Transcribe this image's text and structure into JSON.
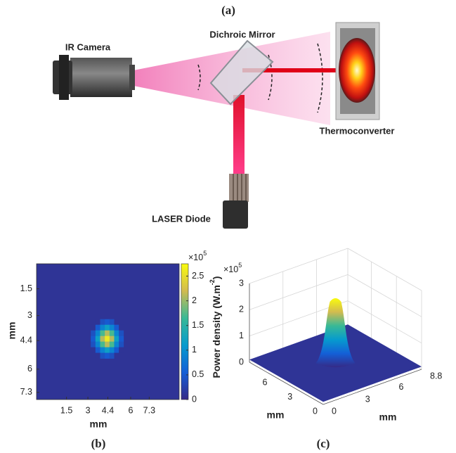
{
  "panel_a": {
    "label": "(a)",
    "camera": "IR Camera",
    "mirror": "Dichroic Mirror",
    "target": "Thermoconverter",
    "laser": "LASER Diode"
  },
  "panel_b_label": "(b)",
  "panel_c_label": "(c)",
  "chart_data": [
    {
      "type": "heatmap",
      "xlabel": "mm",
      "ylabel": "mm",
      "xlim": [
        -0.6,
        9.4
      ],
      "ylim": [
        0.1,
        7.7
      ],
      "xticks": [
        1.5,
        3,
        4.4,
        6,
        7.3
      ],
      "yticks": [
        1.5,
        3,
        4.4,
        6,
        7.3
      ],
      "background": 0.1,
      "spot_xlim": [
        3.2,
        5.5
      ],
      "spot_ylim": [
        3.2,
        5.4
      ],
      "spot": [
        [
          0.1,
          0.1,
          0.4,
          0.5,
          0.4,
          0.1,
          0.1
        ],
        [
          0.1,
          0.5,
          0.9,
          1.2,
          0.9,
          0.5,
          0.1
        ],
        [
          0.4,
          0.9,
          1.7,
          2.1,
          1.7,
          0.9,
          0.4
        ],
        [
          0.5,
          1.2,
          2.1,
          2.6,
          2.1,
          1.2,
          0.5
        ],
        [
          0.4,
          0.9,
          1.7,
          2.1,
          1.7,
          0.9,
          0.4
        ],
        [
          0.1,
          0.5,
          0.9,
          1.2,
          0.9,
          0.5,
          0.1
        ],
        [
          0.1,
          0.1,
          0.4,
          0.5,
          0.4,
          0.1,
          0.1
        ]
      ],
      "colormap": "parula",
      "clim": [
        0,
        2.75
      ],
      "cticks": [
        0,
        0.5,
        1,
        1.5,
        2,
        2.5
      ],
      "exponent_base": "×10",
      "exponent": "5"
    },
    {
      "type": "surface3d",
      "zlabel": "Power density (W.m",
      "zlabel_sup": "-2",
      "zlabel_end": ")",
      "zlim": [
        0,
        3
      ],
      "zticks": [
        0,
        1,
        2,
        3
      ],
      "exponent_base": "×10",
      "exponent": "5",
      "xlabel": "mm",
      "ylabel": "mm",
      "xlim": [
        0,
        8.8
      ],
      "xticks": [
        0,
        3,
        6,
        8.8
      ],
      "ylim": [
        0,
        8.8
      ],
      "yticks": [
        0,
        3,
        6
      ],
      "peak": 2.6,
      "floor": 0.1,
      "colormap": "parula"
    }
  ]
}
